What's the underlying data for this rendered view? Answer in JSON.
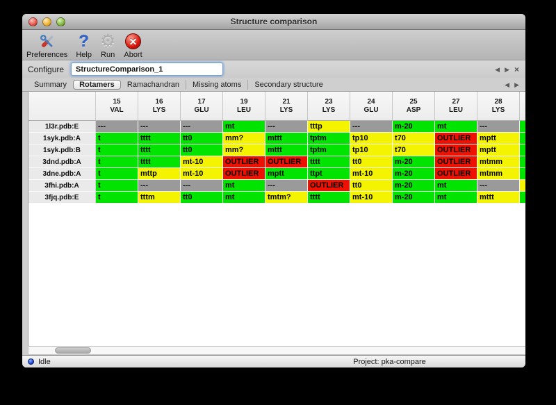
{
  "window": {
    "title": "Structure comparison"
  },
  "toolbar": {
    "items": [
      {
        "id": "preferences",
        "label": "Preferences",
        "icon": "tools-icon"
      },
      {
        "id": "help",
        "label": "Help",
        "icon": "question-icon"
      },
      {
        "id": "run",
        "label": "Run",
        "icon": "gear-icon"
      },
      {
        "id": "abort",
        "label": "Abort",
        "icon": "abort-icon"
      }
    ]
  },
  "configure": {
    "label": "Configure",
    "value": "StructureComparison_1"
  },
  "pager_top": {
    "prev": "◀",
    "next": "▶",
    "close": "×"
  },
  "pager_tabs": {
    "prev": "◀",
    "next": "▶"
  },
  "tabs": [
    {
      "label": "Summary",
      "selected": false
    },
    {
      "label": "Rotamers",
      "selected": true
    },
    {
      "label": "Ramachandran",
      "selected": false
    },
    {
      "label": "Missing atoms",
      "selected": false
    },
    {
      "label": "Secondary structure",
      "selected": false
    }
  ],
  "table": {
    "columns": [
      {
        "num": "15",
        "res": "VAL"
      },
      {
        "num": "16",
        "res": "LYS"
      },
      {
        "num": "17",
        "res": "GLU"
      },
      {
        "num": "19",
        "res": "LEU"
      },
      {
        "num": "21",
        "res": "LYS"
      },
      {
        "num": "23",
        "res": "LYS"
      },
      {
        "num": "24",
        "res": "GLU"
      },
      {
        "num": "25",
        "res": "ASP"
      },
      {
        "num": "27",
        "res": "LEU"
      },
      {
        "num": "28",
        "res": "LYS"
      }
    ],
    "rows": [
      {
        "label": "1l3r.pdb:E",
        "cells": [
          [
            "---",
            "gray"
          ],
          [
            "---",
            "gray"
          ],
          [
            "---",
            "gray"
          ],
          [
            "mt",
            "green"
          ],
          [
            "---",
            "gray"
          ],
          [
            "tttp",
            "yellow"
          ],
          [
            "---",
            "gray"
          ],
          [
            "m-20",
            "green"
          ],
          [
            "mt",
            "green"
          ],
          [
            "---",
            "gray"
          ]
        ],
        "overflow_color": "green"
      },
      {
        "label": "1syk.pdb:A",
        "cells": [
          [
            "t",
            "green"
          ],
          [
            "tttt",
            "green"
          ],
          [
            "tt0",
            "green"
          ],
          [
            "mm?",
            "yellow"
          ],
          [
            "mttt",
            "green"
          ],
          [
            "tptm",
            "green"
          ],
          [
            "tp10",
            "yellow"
          ],
          [
            "t70",
            "yellow"
          ],
          [
            "OUTLIER",
            "red"
          ],
          [
            "mptt",
            "yellow"
          ]
        ],
        "overflow_color": "green"
      },
      {
        "label": "1syk.pdb:B",
        "cells": [
          [
            "t",
            "green"
          ],
          [
            "tttt",
            "green"
          ],
          [
            "tt0",
            "green"
          ],
          [
            "mm?",
            "yellow"
          ],
          [
            "mttt",
            "green"
          ],
          [
            "tptm",
            "green"
          ],
          [
            "tp10",
            "yellow"
          ],
          [
            "t70",
            "yellow"
          ],
          [
            "OUTLIER",
            "red"
          ],
          [
            "mptt",
            "yellow"
          ]
        ],
        "overflow_color": "green"
      },
      {
        "label": "3dnd.pdb:A",
        "cells": [
          [
            "t",
            "green"
          ],
          [
            "tttt",
            "green"
          ],
          [
            "mt-10",
            "yellow"
          ],
          [
            "OUTLIER",
            "red"
          ],
          [
            "OUTLIER",
            "red"
          ],
          [
            "tttt",
            "green"
          ],
          [
            "tt0",
            "yellow"
          ],
          [
            "m-20",
            "green"
          ],
          [
            "OUTLIER",
            "red"
          ],
          [
            "mtmm",
            "yellow"
          ]
        ],
        "overflow_color": "green"
      },
      {
        "label": "3dne.pdb:A",
        "cells": [
          [
            "t",
            "green"
          ],
          [
            "mttp",
            "yellow"
          ],
          [
            "mt-10",
            "yellow"
          ],
          [
            "OUTLIER",
            "red"
          ],
          [
            "mptt",
            "green"
          ],
          [
            "ttpt",
            "green"
          ],
          [
            "mt-10",
            "yellow"
          ],
          [
            "m-20",
            "green"
          ],
          [
            "OUTLIER",
            "red"
          ],
          [
            "mtmm",
            "yellow"
          ]
        ],
        "overflow_color": "green"
      },
      {
        "label": "3fhi.pdb:A",
        "cells": [
          [
            "t",
            "green"
          ],
          [
            "---",
            "gray"
          ],
          [
            "---",
            "gray"
          ],
          [
            "mt",
            "green"
          ],
          [
            "---",
            "gray"
          ],
          [
            "OUTLIER",
            "red"
          ],
          [
            "tt0",
            "yellow"
          ],
          [
            "m-20",
            "green"
          ],
          [
            "mt",
            "green"
          ],
          [
            "---",
            "gray"
          ]
        ],
        "overflow_color": "yellow"
      },
      {
        "label": "3fjq.pdb:E",
        "cells": [
          [
            "t",
            "green"
          ],
          [
            "tttm",
            "yellow"
          ],
          [
            "tt0",
            "green"
          ],
          [
            "mt",
            "green"
          ],
          [
            "tmtm?",
            "yellow"
          ],
          [
            "tttt",
            "green"
          ],
          [
            "mt-10",
            "yellow"
          ],
          [
            "m-20",
            "green"
          ],
          [
            "mt",
            "green"
          ],
          [
            "mttt",
            "yellow"
          ]
        ],
        "overflow_color": "green"
      }
    ]
  },
  "status": {
    "state": "Idle",
    "project": "Project: pka-compare"
  },
  "colors": {
    "green": "#00e400",
    "yellow": "#f4f400",
    "red": "#ee1000",
    "gray": "#9a9a9a"
  }
}
